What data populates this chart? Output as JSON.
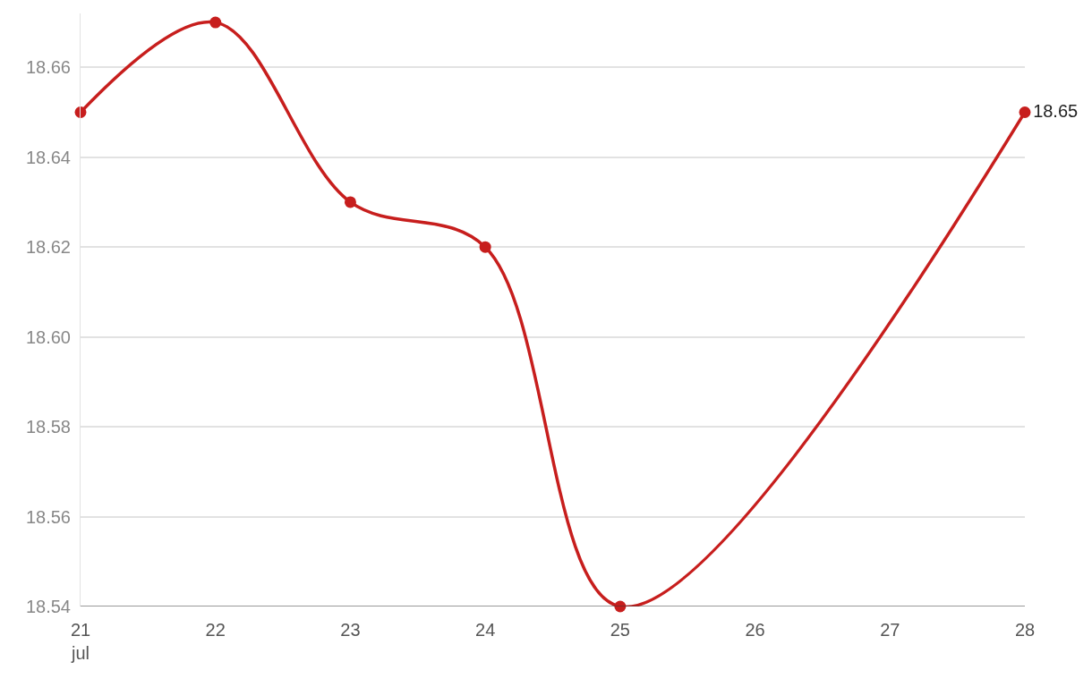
{
  "chart_data": {
    "type": "line",
    "x": [
      "--07-21",
      "--07-22",
      "--07-23",
      "--07-24",
      "--07-25",
      "--07-28"
    ],
    "series": [
      {
        "color": "#c71e1d",
        "values": [
          18.65,
          18.67,
          18.63,
          18.62,
          18.54,
          18.65
        ],
        "value_labels": [
          null,
          null,
          null,
          null,
          null,
          "18.65"
        ]
      }
    ],
    "xlim": [
      "--07-21",
      "--07-28"
    ],
    "xticks": [
      {
        "value": "--07-21",
        "label": "21\njul"
      },
      {
        "value": "--07-22",
        "label": "22"
      },
      {
        "value": "--07-23",
        "label": "23"
      },
      {
        "value": "--07-24",
        "label": "24"
      },
      {
        "value": "--07-25",
        "label": "25"
      },
      {
        "value": "--07-26",
        "label": "26"
      },
      {
        "value": "--07-27",
        "label": "27"
      },
      {
        "value": "--07-28",
        "label": "28"
      }
    ],
    "ylim": [
      18.54,
      18.672
    ],
    "yticks": [
      18.54,
      18.56,
      18.58,
      {
        "value": 18.6,
        "label": "18.60"
      },
      18.62,
      18.64,
      18.66
    ],
    "grid": "y",
    "marker": "circle",
    "line_style": "solid"
  }
}
